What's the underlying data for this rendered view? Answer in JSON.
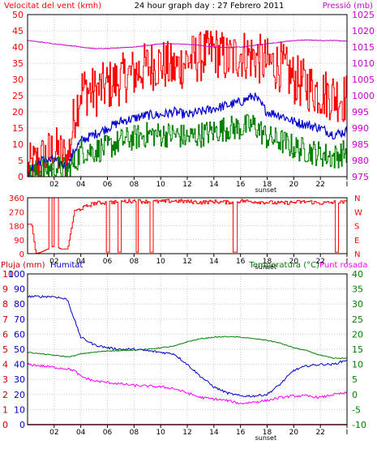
{
  "colors": {
    "wind": "#ff0000",
    "pressure": "#cc00cc",
    "direction": "#ff0000",
    "rain": "#cc0000",
    "humidity": "#0000cc",
    "temperature": "#008000",
    "dewpoint": "#ff00ff",
    "grid": "#c8c8c8",
    "frame": "#000000"
  },
  "chart_data": [
    {
      "type": "line",
      "title": "24 hour graph day : 27 Febrero 2011",
      "left_label": "Velocitat del vent (kmh)",
      "right_label": "Pressió (mb)",
      "x_ticks": [
        "02",
        "04",
        "06",
        "08",
        "10",
        "12",
        "14",
        "16",
        "18",
        "20",
        "22",
        "I"
      ],
      "sunset_label": "sunset",
      "y_left": {
        "min": 0,
        "max": 50,
        "ticks": [
          0,
          5,
          10,
          15,
          20,
          25,
          30,
          35,
          40,
          45,
          50
        ]
      },
      "y_right": {
        "min": 975,
        "max": 1025,
        "ticks": [
          975,
          980,
          985,
          990,
          995,
          1000,
          1005,
          1010,
          1015,
          1020,
          1025
        ]
      },
      "x_hours": [
        0,
        1,
        2,
        3,
        3.5,
        4,
        5,
        6,
        7,
        8,
        9,
        10,
        11,
        12,
        13,
        14,
        15,
        16,
        17,
        18,
        19,
        20,
        21,
        22,
        23,
        24
      ],
      "series": [
        {
          "key": "gust",
          "axis": "left",
          "values": [
            2,
            5,
            8,
            5,
            19,
            27,
            26,
            28,
            30,
            32,
            34,
            35,
            33,
            36,
            37,
            39,
            36,
            38,
            37,
            35,
            34,
            30,
            28,
            26,
            25,
            24
          ]
        },
        {
          "key": "avg",
          "axis": "left",
          "values": [
            1,
            5,
            5,
            3,
            8,
            11,
            13,
            15,
            17,
            18,
            19,
            19,
            20,
            19,
            20,
            21,
            22,
            23,
            25,
            20,
            19,
            17,
            16,
            15,
            13,
            14
          ]
        },
        {
          "key": "min",
          "axis": "left",
          "values": [
            0,
            2,
            3,
            2,
            4,
            8,
            8,
            9,
            11,
            12,
            13,
            13,
            13,
            12,
            13,
            14,
            15,
            15,
            16,
            12,
            11,
            9,
            8,
            7,
            6,
            8
          ]
        },
        {
          "key": "pressure",
          "axis": "right",
          "values": [
            1017,
            1016.5,
            1016,
            1015.5,
            1015.3,
            1015,
            1014.5,
            1014.5,
            1014.8,
            1015,
            1015.5,
            1016,
            1016,
            1015.8,
            1015.5,
            1015,
            1014.8,
            1015,
            1015.5,
            1016,
            1016.5,
            1017,
            1017.2,
            1017,
            1017,
            1016.8
          ]
        }
      ]
    },
    {
      "type": "line",
      "left_ticks": [
        0,
        90,
        180,
        270,
        360
      ],
      "right_ticks": [
        "N",
        "W",
        "S",
        "E",
        "N"
      ],
      "x_ticks": [
        "02",
        "04",
        "06",
        "08",
        "10",
        "12",
        "14",
        "16",
        "18",
        "20",
        "22",
        "I"
      ],
      "sunset_label": "sunset",
      "ylim": [
        0,
        360
      ],
      "base_hours": [
        0,
        0.3,
        0.6,
        1,
        1.5,
        2,
        2.5,
        3,
        3.5,
        4,
        5,
        6,
        7,
        8,
        9,
        10,
        11,
        12,
        13,
        14,
        15,
        16,
        17,
        18,
        19,
        20,
        21,
        22,
        23,
        24
      ],
      "base_values": [
        190,
        190,
        0,
        10,
        30,
        50,
        30,
        30,
        270,
        290,
        325,
        330,
        335,
        340,
        335,
        335,
        340,
        335,
        330,
        335,
        330,
        340,
        335,
        330,
        325,
        330,
        335,
        325,
        330,
        330
      ],
      "spikes": [
        {
          "from": 1.6,
          "to": 1.8,
          "to_value": 360
        },
        {
          "from": 2.0,
          "to": 2.3,
          "to_value": 360
        },
        {
          "from": 5.9,
          "to": 6.1,
          "to_value": 10
        },
        {
          "from": 6.8,
          "to": 7.0,
          "to_value": 10
        },
        {
          "from": 8.1,
          "to": 8.3,
          "to_value": 10
        },
        {
          "from": 9.2,
          "to": 9.4,
          "to_value": 10
        },
        {
          "from": 15.4,
          "to": 15.7,
          "to_value": 10
        },
        {
          "from": 23.1,
          "to": 23.3,
          "to_value": 10
        }
      ]
    },
    {
      "type": "line",
      "left_label": "Pluja (mm)",
      "humidity_label": "Humitat",
      "right_label_1": "Temperatura (°C)",
      "right_label_2": "Punt rosada",
      "x_ticks": [
        "02",
        "04",
        "06",
        "08",
        "10",
        "12",
        "14",
        "16",
        "18",
        "20",
        "22",
        "I"
      ],
      "sunset_label": "sunset",
      "y_left_outer": {
        "min": 0,
        "max": 10,
        "ticks": [
          "0",
          "1",
          "2",
          "3",
          "4",
          "5",
          "6",
          "7",
          "8",
          "9",
          "10"
        ]
      },
      "y_left_inner": {
        "min": 0,
        "max": 100,
        "ticks": [
          "0",
          "10",
          "20",
          "30",
          "40",
          "50",
          "60",
          "70",
          "80",
          "90",
          "100"
        ]
      },
      "y_right": {
        "min": -10,
        "max": 40,
        "ticks": [
          "-10",
          "-5",
          "0",
          "5",
          "10",
          "15",
          "20",
          "25",
          "30",
          "35",
          "40"
        ]
      },
      "x_hours": [
        0,
        1,
        2,
        3,
        3.5,
        4,
        5,
        6,
        7,
        8,
        9,
        10,
        11,
        12,
        13,
        14,
        15,
        16,
        17,
        18,
        19,
        20,
        21,
        22,
        23,
        24
      ],
      "series": [
        {
          "key": "humidity",
          "axis": "inner",
          "values": [
            85,
            85,
            85,
            83,
            70,
            58,
            53,
            51,
            50,
            50,
            49,
            48,
            47,
            40,
            32,
            25,
            21,
            19,
            19,
            20,
            27,
            36,
            39,
            40,
            40,
            43
          ]
        },
        {
          "key": "temperature",
          "axis": "right",
          "values": [
            14,
            13.5,
            13,
            12.5,
            12.8,
            13.5,
            14,
            14.5,
            14.5,
            14.8,
            15,
            15.5,
            16,
            17.5,
            18.5,
            19,
            19.2,
            19,
            18.5,
            18,
            17,
            15.5,
            14.5,
            13,
            12,
            12
          ]
        },
        {
          "key": "dewpoint",
          "axis": "right",
          "values": [
            10,
            9.5,
            9,
            8.5,
            8,
            6,
            4.5,
            4,
            3.5,
            3,
            2.8,
            2.5,
            2,
            0.5,
            -1,
            -1.5,
            -2,
            -3,
            -2.5,
            -2,
            -1,
            -0.5,
            -0.5,
            -1,
            0,
            0.5
          ]
        },
        {
          "key": "rain",
          "axis": "outer",
          "values": [
            0,
            0,
            0,
            0,
            0,
            0,
            0,
            0,
            0,
            0,
            0,
            0,
            0,
            0,
            0,
            0,
            0,
            0,
            0,
            0,
            0,
            0,
            0,
            0,
            0,
            0
          ]
        }
      ]
    }
  ]
}
